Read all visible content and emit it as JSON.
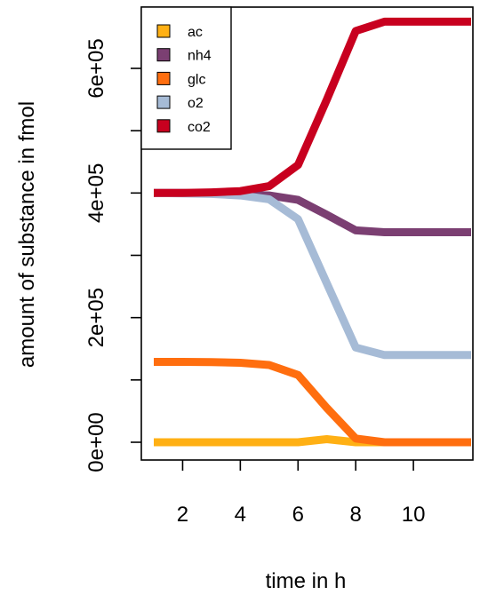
{
  "chart_data": {
    "type": "line",
    "title": "",
    "xlabel": "time in h",
    "ylabel": "amount of substance in fmol",
    "x": [
      1,
      2,
      3,
      4,
      5,
      6,
      7,
      8,
      9,
      10,
      11,
      12
    ],
    "xlim": [
      1,
      12
    ],
    "ylim": [
      0,
      680000
    ],
    "x_ticks": [
      2,
      4,
      6,
      8,
      10
    ],
    "y_ticks": [
      0,
      100000,
      200000,
      300000,
      400000,
      500000,
      600000
    ],
    "y_tick_labels": {
      "0": "0e+00",
      "200000": "2e+05",
      "400000": "4e+05",
      "600000": "6e+05"
    },
    "grid": false,
    "legend_position": "top-left",
    "series": [
      {
        "name": "ac",
        "color": "#FFB014",
        "values": [
          0,
          0,
          0,
          0,
          0,
          0,
          5000,
          0,
          0,
          0,
          0,
          0
        ]
      },
      {
        "name": "nh4",
        "color": "#7B3F72",
        "values": [
          400000,
          400000,
          399000,
          398000,
          396000,
          389000,
          365000,
          340000,
          337000,
          337000,
          337000,
          337000
        ]
      },
      {
        "name": "glc",
        "color": "#FF6E0F",
        "values": [
          129000,
          129000,
          128500,
          127500,
          124000,
          108000,
          55000,
          6000,
          0,
          0,
          0,
          0
        ]
      },
      {
        "name": "o2",
        "color": "#A6BBD6",
        "values": [
          400000,
          399500,
          398500,
          396000,
          390000,
          358000,
          255000,
          152000,
          140000,
          140000,
          140000,
          140000
        ]
      },
      {
        "name": "co2",
        "color": "#C8001F",
        "values": [
          400000,
          400000,
          401000,
          403000,
          411000,
          445000,
          550000,
          660000,
          675000,
          675000,
          675000,
          675000
        ]
      }
    ]
  }
}
